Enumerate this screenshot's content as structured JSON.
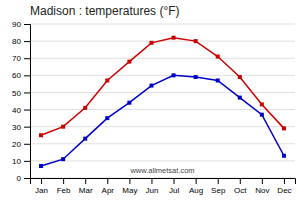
{
  "chart_data": {
    "type": "line",
    "title": "Madison : temperatures (°F)",
    "categories": [
      "Jan",
      "Feb",
      "Mar",
      "Apr",
      "May",
      "Jun",
      "Jul",
      "Aug",
      "Sep",
      "Oct",
      "Nov",
      "Dec"
    ],
    "series": [
      {
        "color": "#cc0000",
        "marker": "square",
        "values": [
          25,
          30,
          41,
          57,
          68,
          79,
          82,
          80,
          71,
          59,
          43,
          29
        ]
      },
      {
        "color": "#0000cc",
        "marker": "square",
        "values": [
          7,
          11,
          23,
          35,
          44,
          54,
          60,
          59,
          57,
          47,
          37,
          13
        ]
      }
    ],
    "ylim": [
      0,
      90
    ],
    "yticks": [
      0,
      10,
      20,
      30,
      40,
      50,
      60,
      70,
      80,
      90
    ],
    "grid": true,
    "annotations": [
      "www.allmetsat.com"
    ]
  }
}
